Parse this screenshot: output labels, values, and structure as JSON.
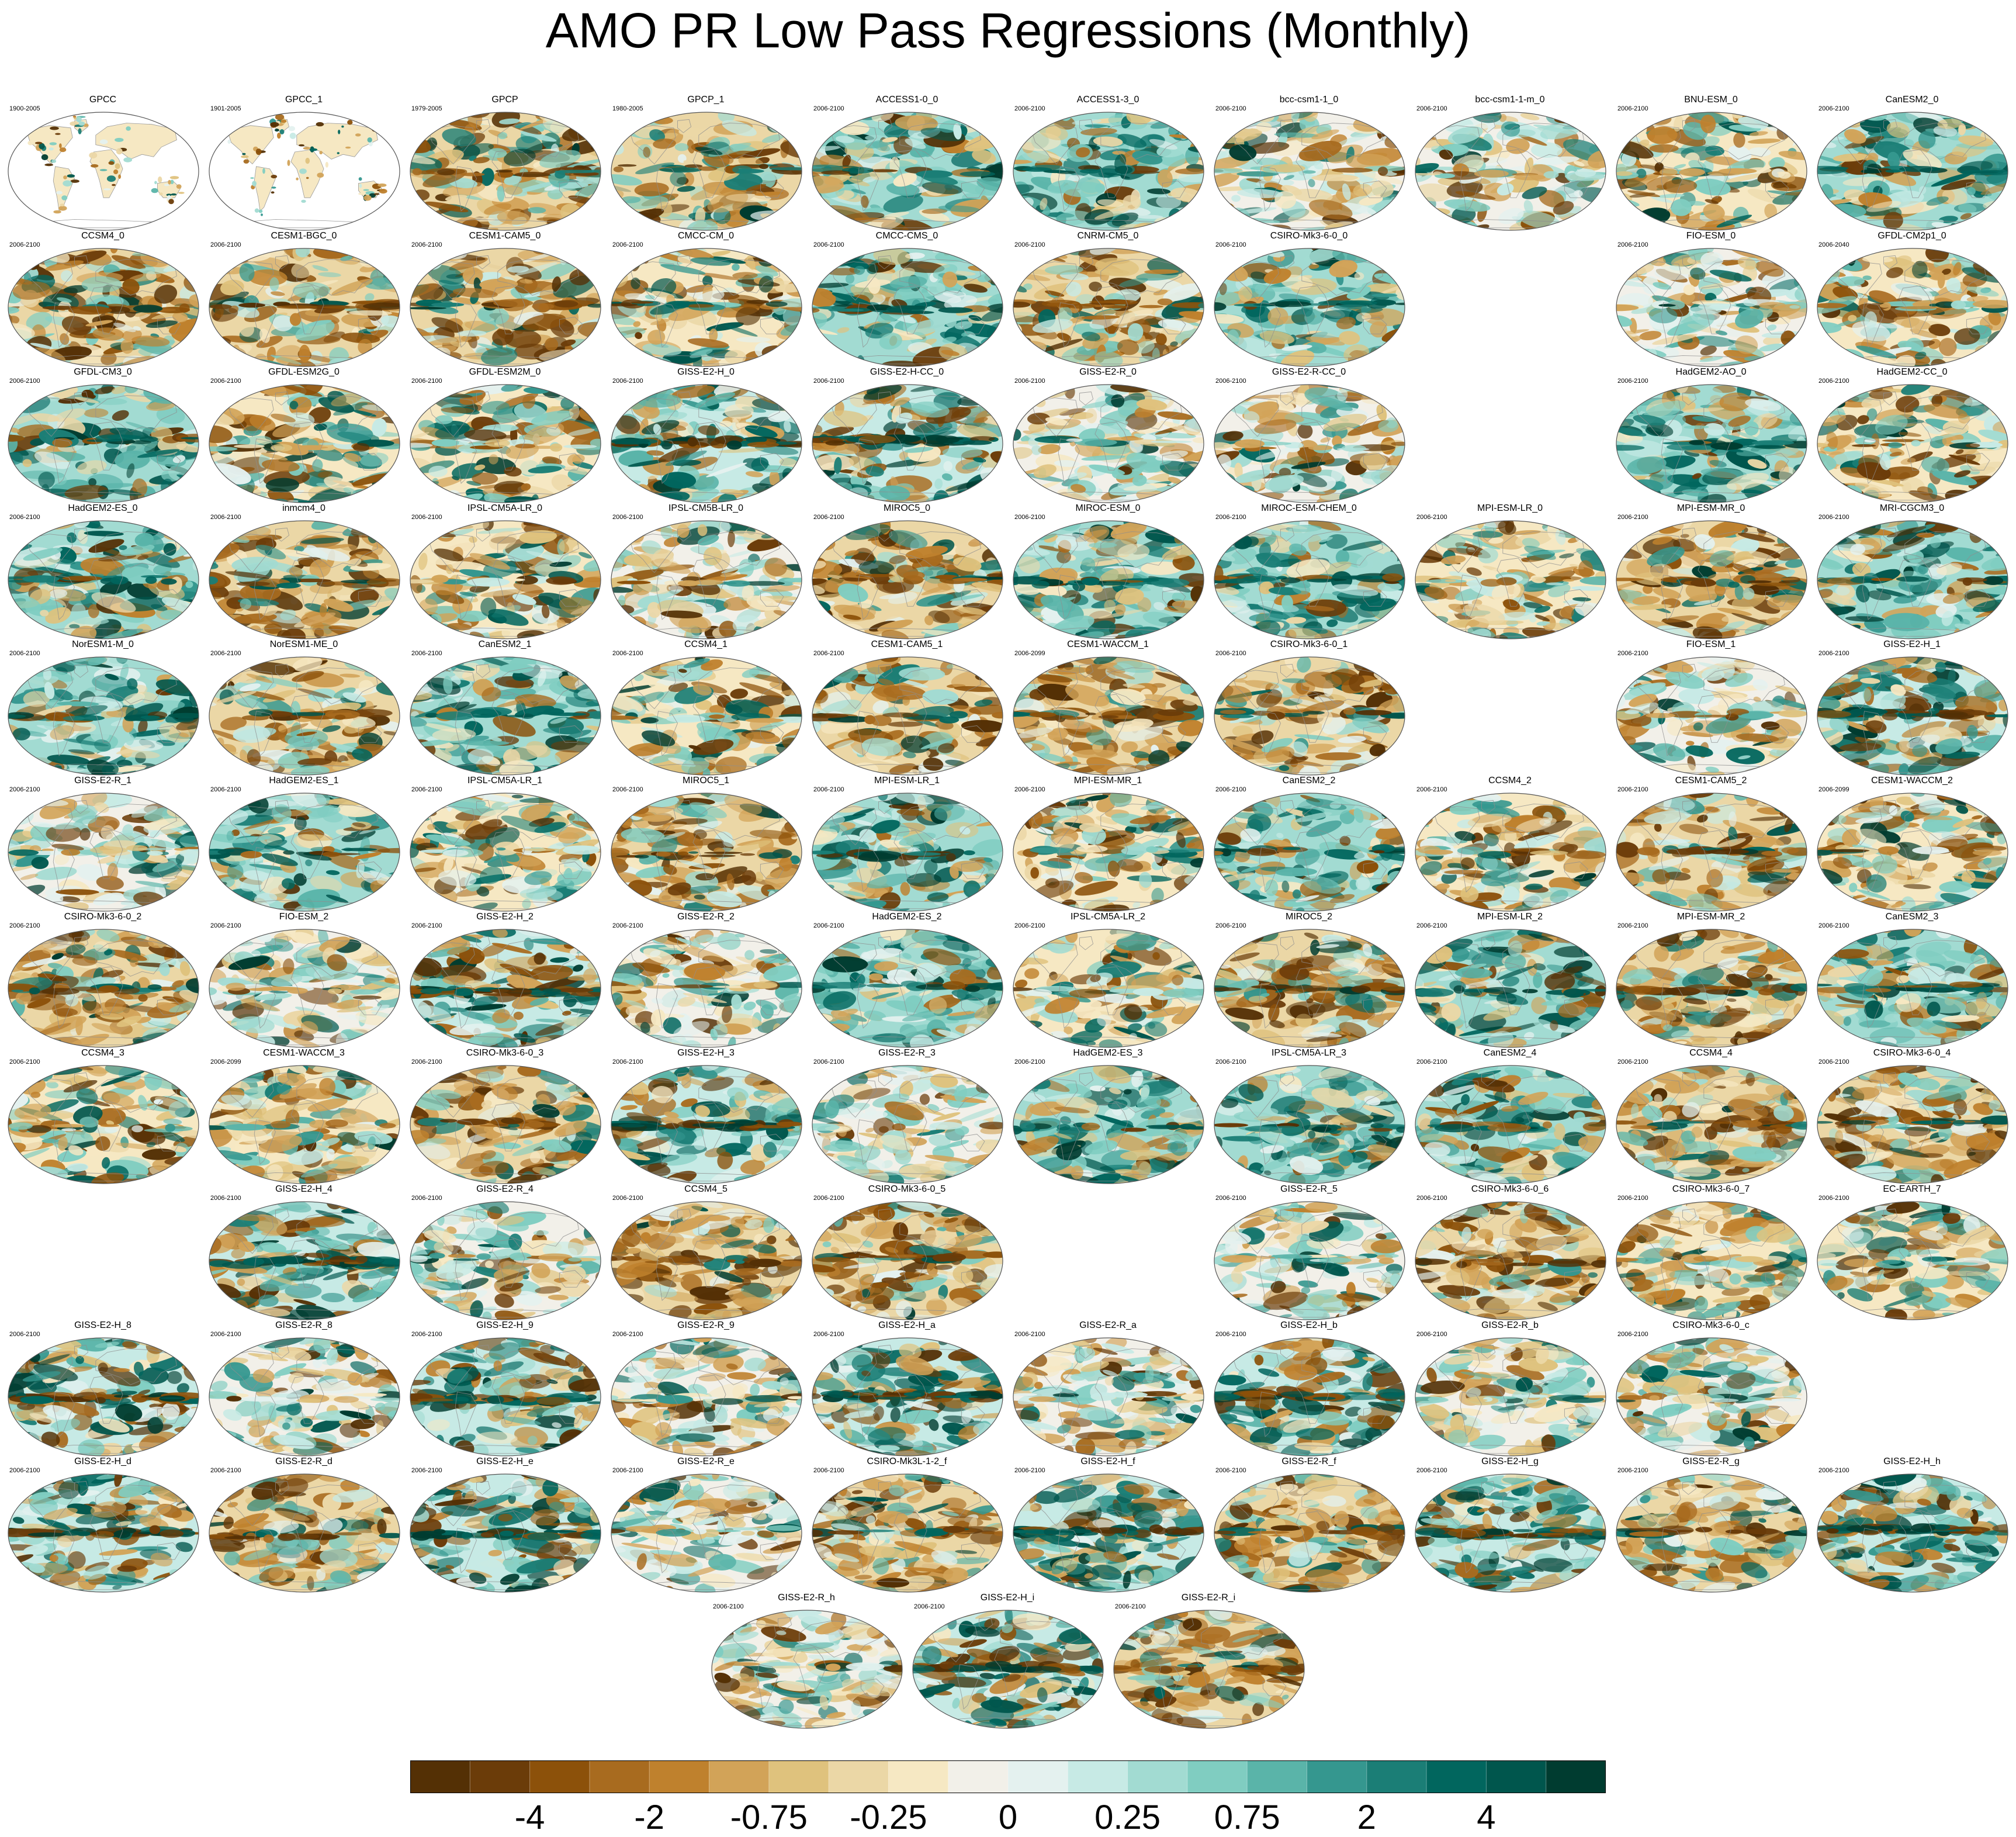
{
  "title": "AMO PR Low Pass Regressions (Monthly)",
  "colorbar": {
    "colors": [
      "#543005",
      "#6b3c09",
      "#8c510a",
      "#a86b1f",
      "#bf812d",
      "#d2a358",
      "#dfc27d",
      "#ebd7a6",
      "#f6e8c3",
      "#f2f0e9",
      "#e4f1ef",
      "#c7eae5",
      "#a2dbd2",
      "#80cdc1",
      "#5ab4a9",
      "#35978f",
      "#1b7e76",
      "#01665e",
      "#00564d",
      "#003c30"
    ],
    "labels": [
      "-4",
      "-2",
      "-0.75",
      "-0.25",
      "0",
      "0.25",
      "0.75",
      "2",
      "4"
    ]
  },
  "rows": [
    [
      {
        "name": "GPCC",
        "period": "1900-2005",
        "col": 0,
        "style": "obs"
      },
      {
        "name": "GPCC_1",
        "period": "1901-2005",
        "col": 1,
        "style": "obs"
      },
      {
        "name": "GPCP",
        "period": "1979-2005",
        "col": 2,
        "style": "brown"
      },
      {
        "name": "GPCP_1",
        "period": "1980-2005",
        "col": 3,
        "style": "brown"
      },
      {
        "name": "ACCESS1-0_0",
        "period": "2006-2100",
        "col": 4,
        "style": "teal"
      },
      {
        "name": "ACCESS1-3_0",
        "period": "2006-2100",
        "col": 5,
        "style": "teal"
      },
      {
        "name": "bcc-csm1-1_0",
        "period": "2006-2100",
        "col": 6,
        "style": "light"
      },
      {
        "name": "bcc-csm1-1-m_0",
        "period": "2006-2100",
        "col": 7,
        "style": "light"
      },
      {
        "name": "BNU-ESM_0",
        "period": "2006-2100",
        "col": 8,
        "style": "mixed"
      },
      {
        "name": "CanESM2_0",
        "period": "2006-2100",
        "col": 9,
        "style": "teal"
      }
    ],
    [
      {
        "name": "CCSM4_0",
        "period": "2006-2100",
        "col": 0,
        "style": "brown"
      },
      {
        "name": "CESM1-BGC_0",
        "period": "2006-2100",
        "col": 1,
        "style": "brown"
      },
      {
        "name": "CESM1-CAM5_0",
        "period": "2006-2100",
        "col": 2,
        "style": "brown"
      },
      {
        "name": "CMCC-CM_0",
        "period": "2006-2100",
        "col": 3,
        "style": "mixed"
      },
      {
        "name": "CMCC-CMS_0",
        "period": "2006-2100",
        "col": 4,
        "style": "teal"
      },
      {
        "name": "CNRM-CM5_0",
        "period": "2006-2100",
        "col": 5,
        "style": "brown"
      },
      {
        "name": "CSIRO-Mk3-6-0_0",
        "period": "2006-2100",
        "col": 6,
        "style": "teal"
      },
      {
        "name": "FIO-ESM_0",
        "period": "2006-2100",
        "col": 8,
        "style": "light"
      },
      {
        "name": "GFDL-CM2p1_0",
        "period": "2006-2040",
        "col": 9,
        "style": "mixed"
      }
    ],
    [
      {
        "name": "GFDL-CM3_0",
        "period": "2006-2100",
        "col": 0,
        "style": "teal"
      },
      {
        "name": "GFDL-ESM2G_0",
        "period": "2006-2100",
        "col": 1,
        "style": "mixed"
      },
      {
        "name": "GFDL-ESM2M_0",
        "period": "2006-2100",
        "col": 2,
        "style": "mixed"
      },
      {
        "name": "GISS-E2-H_0",
        "period": "2006-2100",
        "col": 3,
        "style": "band"
      },
      {
        "name": "GISS-E2-H-CC_0",
        "period": "2006-2100",
        "col": 4,
        "style": "band"
      },
      {
        "name": "GISS-E2-R_0",
        "period": "2006-2100",
        "col": 5,
        "style": "light"
      },
      {
        "name": "GISS-E2-R-CC_0",
        "period": "2006-2100",
        "col": 6,
        "style": "light"
      },
      {
        "name": "HadGEM2-AO_0",
        "period": "2006-2100",
        "col": 8,
        "style": "teal"
      },
      {
        "name": "HadGEM2-CC_0",
        "period": "2006-2100",
        "col": 9,
        "style": "mixed"
      }
    ],
    [
      {
        "name": "HadGEM2-ES_0",
        "period": "2006-2100",
        "col": 0,
        "style": "teal"
      },
      {
        "name": "inmcm4_0",
        "period": "2006-2100",
        "col": 1,
        "style": "brown"
      },
      {
        "name": "IPSL-CM5A-LR_0",
        "period": "2006-2100",
        "col": 2,
        "style": "mixed"
      },
      {
        "name": "IPSL-CM5B-LR_0",
        "period": "2006-2100",
        "col": 3,
        "style": "light"
      },
      {
        "name": "MIROC5_0",
        "period": "2006-2100",
        "col": 4,
        "style": "brown"
      },
      {
        "name": "MIROC-ESM_0",
        "period": "2006-2100",
        "col": 5,
        "style": "teal"
      },
      {
        "name": "MIROC-ESM-CHEM_0",
        "period": "2006-2100",
        "col": 6,
        "style": "teal"
      },
      {
        "name": "MPI-ESM-LR_0",
        "period": "2006-2100",
        "col": 7,
        "style": "mixed"
      },
      {
        "name": "MPI-ESM-MR_0",
        "period": "2006-2100",
        "col": 8,
        "style": "brown"
      },
      {
        "name": "MRI-CGCM3_0",
        "period": "2006-2100",
        "col": 9,
        "style": "teal"
      }
    ],
    [
      {
        "name": "NorESM1-M_0",
        "period": "2006-2100",
        "col": 0,
        "style": "teal"
      },
      {
        "name": "NorESM1-ME_0",
        "period": "2006-2100",
        "col": 1,
        "style": "brown"
      },
      {
        "name": "CanESM2_1",
        "period": "2006-2100",
        "col": 2,
        "style": "teal"
      },
      {
        "name": "CCSM4_1",
        "period": "2006-2100",
        "col": 3,
        "style": "mixed"
      },
      {
        "name": "CESM1-CAM5_1",
        "period": "2006-2100",
        "col": 4,
        "style": "brown"
      },
      {
        "name": "CESM1-WACCM_1",
        "period": "2006-2099",
        "col": 5,
        "style": "brown"
      },
      {
        "name": "CSIRO-Mk3-6-0_1",
        "period": "2006-2100",
        "col": 6,
        "style": "brown"
      },
      {
        "name": "FIO-ESM_1",
        "period": "2006-2100",
        "col": 8,
        "style": "light"
      },
      {
        "name": "GISS-E2-H_1",
        "period": "2006-2100",
        "col": 9,
        "style": "band"
      }
    ],
    [
      {
        "name": "GISS-E2-R_1",
        "period": "2006-2100",
        "col": 0,
        "style": "light"
      },
      {
        "name": "HadGEM2-ES_1",
        "period": "2006-2100",
        "col": 1,
        "style": "teal"
      },
      {
        "name": "IPSL-CM5A-LR_1",
        "period": "2006-2100",
        "col": 2,
        "style": "mixed"
      },
      {
        "name": "MIROC5_1",
        "period": "2006-2100",
        "col": 3,
        "style": "brown"
      },
      {
        "name": "MPI-ESM-LR_1",
        "period": "2006-2100",
        "col": 4,
        "style": "teal"
      },
      {
        "name": "MPI-ESM-MR_1",
        "period": "2006-2100",
        "col": 5,
        "style": "mixed"
      },
      {
        "name": "CanESM2_2",
        "period": "2006-2100",
        "col": 6,
        "style": "teal"
      },
      {
        "name": "CCSM4_2",
        "period": "2006-2100",
        "col": 7,
        "style": "mixed"
      },
      {
        "name": "CESM1-CAM5_2",
        "period": "2006-2100",
        "col": 8,
        "style": "brown"
      },
      {
        "name": "CESM1-WACCM_2",
        "period": "2006-2099",
        "col": 9,
        "style": "mixed"
      }
    ],
    [
      {
        "name": "CSIRO-Mk3-6-0_2",
        "period": "2006-2100",
        "col": 0,
        "style": "brown"
      },
      {
        "name": "FIO-ESM_2",
        "period": "2006-2100",
        "col": 1,
        "style": "light"
      },
      {
        "name": "GISS-E2-H_2",
        "period": "2006-2100",
        "col": 2,
        "style": "band"
      },
      {
        "name": "GISS-E2-R_2",
        "period": "2006-2100",
        "col": 3,
        "style": "light"
      },
      {
        "name": "HadGEM2-ES_2",
        "period": "2006-2100",
        "col": 4,
        "style": "teal"
      },
      {
        "name": "IPSL-CM5A-LR_2",
        "period": "2006-2100",
        "col": 5,
        "style": "mixed"
      },
      {
        "name": "MIROC5_2",
        "period": "2006-2100",
        "col": 6,
        "style": "brown"
      },
      {
        "name": "MPI-ESM-LR_2",
        "period": "2006-2100",
        "col": 7,
        "style": "teal"
      },
      {
        "name": "MPI-ESM-MR_2",
        "period": "2006-2100",
        "col": 8,
        "style": "brown"
      },
      {
        "name": "CanESM2_3",
        "period": "2006-2100",
        "col": 9,
        "style": "teal"
      }
    ],
    [
      {
        "name": "CCSM4_3",
        "period": "2006-2100",
        "col": 0,
        "style": "mixed"
      },
      {
        "name": "CESM1-WACCM_3",
        "period": "2006-2099",
        "col": 1,
        "style": "mixed"
      },
      {
        "name": "CSIRO-Mk3-6-0_3",
        "period": "2006-2100",
        "col": 2,
        "style": "brown"
      },
      {
        "name": "GISS-E2-H_3",
        "period": "2006-2100",
        "col": 3,
        "style": "band"
      },
      {
        "name": "GISS-E2-R_3",
        "period": "2006-2100",
        "col": 4,
        "style": "light"
      },
      {
        "name": "HadGEM2-ES_3",
        "period": "2006-2100",
        "col": 5,
        "style": "teal"
      },
      {
        "name": "IPSL-CM5A-LR_3",
        "period": "2006-2100",
        "col": 6,
        "style": "teal"
      },
      {
        "name": "CanESM2_4",
        "period": "2006-2100",
        "col": 7,
        "style": "teal"
      },
      {
        "name": "CCSM4_4",
        "period": "2006-2100",
        "col": 8,
        "style": "brown"
      },
      {
        "name": "CSIRO-Mk3-6-0_4",
        "period": "2006-2100",
        "col": 9,
        "style": "brown"
      }
    ],
    [
      {
        "name": "GISS-E2-H_4",
        "period": "2006-2100",
        "col": 1,
        "style": "band"
      },
      {
        "name": "GISS-E2-R_4",
        "period": "2006-2100",
        "col": 2,
        "style": "light"
      },
      {
        "name": "CCSM4_5",
        "period": "2006-2100",
        "col": 3,
        "style": "brown"
      },
      {
        "name": "CSIRO-Mk3-6-0_5",
        "period": "2006-2100",
        "col": 4,
        "style": "brown"
      },
      {
        "name": "GISS-E2-R_5",
        "period": "2006-2100",
        "col": 6,
        "style": "light"
      },
      {
        "name": "CSIRO-Mk3-6-0_6",
        "period": "2006-2100",
        "col": 7,
        "style": "brown"
      },
      {
        "name": "CSIRO-Mk3-6-0_7",
        "period": "2006-2100",
        "col": 8,
        "style": "mixed"
      },
      {
        "name": "EC-EARTH_7",
        "period": "2006-2100",
        "col": 9,
        "style": "mixed"
      }
    ],
    [
      {
        "name": "GISS-E2-H_8",
        "period": "2006-2100",
        "col": 0,
        "style": "band"
      },
      {
        "name": "GISS-E2-R_8",
        "period": "2006-2100",
        "col": 1,
        "style": "light"
      },
      {
        "name": "GISS-E2-H_9",
        "period": "2006-2100",
        "col": 2,
        "style": "band"
      },
      {
        "name": "GISS-E2-R_9",
        "period": "2006-2100",
        "col": 3,
        "style": "light"
      },
      {
        "name": "GISS-E2-H_a",
        "period": "2006-2100",
        "col": 4,
        "style": "band"
      },
      {
        "name": "GISS-E2-R_a",
        "period": "2006-2100",
        "col": 5,
        "style": "light"
      },
      {
        "name": "GISS-E2-H_b",
        "period": "2006-2100",
        "col": 6,
        "style": "band"
      },
      {
        "name": "GISS-E2-R_b",
        "period": "2006-2100",
        "col": 7,
        "style": "light"
      },
      {
        "name": "CSIRO-Mk3-6-0_c",
        "period": "2006-2100",
        "col": 8,
        "style": "light"
      }
    ],
    [
      {
        "name": "GISS-E2-H_d",
        "period": "2006-2100",
        "col": 0,
        "style": "band"
      },
      {
        "name": "GISS-E2-R_d",
        "period": "2006-2100",
        "col": 1,
        "style": "brown"
      },
      {
        "name": "GISS-E2-H_e",
        "period": "2006-2100",
        "col": 2,
        "style": "band"
      },
      {
        "name": "GISS-E2-R_e",
        "period": "2006-2100",
        "col": 3,
        "style": "light"
      },
      {
        "name": "CSIRO-Mk3L-1-2_f",
        "period": "2006-2100",
        "col": 4,
        "style": "brown"
      },
      {
        "name": "GISS-E2-H_f",
        "period": "2006-2100",
        "col": 5,
        "style": "band"
      },
      {
        "name": "GISS-E2-R_f",
        "period": "2006-2100",
        "col": 6,
        "style": "brown"
      },
      {
        "name": "GISS-E2-H_g",
        "period": "2006-2100",
        "col": 7,
        "style": "band"
      },
      {
        "name": "GISS-E2-R_g",
        "period": "2006-2100",
        "col": 8,
        "style": "brown"
      },
      {
        "name": "GISS-E2-H_h",
        "period": "2006-2100",
        "col": 9,
        "style": "band"
      }
    ],
    [
      {
        "name": "GISS-E2-R_h",
        "period": "2006-2100",
        "col": 0,
        "style": "light"
      },
      {
        "name": "GISS-E2-H_i",
        "period": "2006-2100",
        "col": 1,
        "style": "band"
      },
      {
        "name": "GISS-E2-R_i",
        "period": "2006-2100",
        "col": 2,
        "style": "brown"
      }
    ]
  ]
}
